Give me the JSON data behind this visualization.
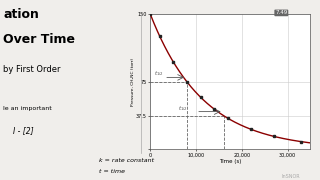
{
  "bg_color": "#f0eeeb",
  "chart_bg": "#ffffff",
  "left_panel_bg": "#ffffff",
  "title_text1": "ation",
  "title_text2": "Over Time",
  "subtitle": "by First Order",
  "highlight_text": "le an important",
  "highlight_bg": "#f5f0b0",
  "xlabel": "Time (s)",
  "ylabel": "Pressure, CH₃NC (torr)",
  "xlim": [
    0,
    35000
  ],
  "ylim": [
    0,
    150
  ],
  "x_ticks": [
    0,
    10000,
    20000,
    30000
  ],
  "x_tick_labels": [
    "0",
    "10,000",
    "20,000",
    "30,000"
  ],
  "y_ticks": [
    0,
    37.5,
    75,
    150
  ],
  "y_tick_labels": [
    "",
    "37.5",
    "75",
    "150"
  ],
  "p0": 150,
  "k": 8.66e-05,
  "data_x": [
    0,
    2000,
    5000,
    8000,
    11000,
    14000,
    17000,
    22000,
    27000,
    33000
  ],
  "curve_color": "#8B0000",
  "marker_color": "#222222",
  "grid_color": "#cccccc",
  "half_life_label_1": "$t_{1/2}$",
  "half_life_label_2": "$t_{1/2}$",
  "annotation_color": "#555555",
  "bottom_text1": "k = rate constant",
  "bottom_text2": "t = time",
  "corner_label": "7.49",
  "figsize": [
    3.2,
    1.8
  ],
  "dpi": 100
}
